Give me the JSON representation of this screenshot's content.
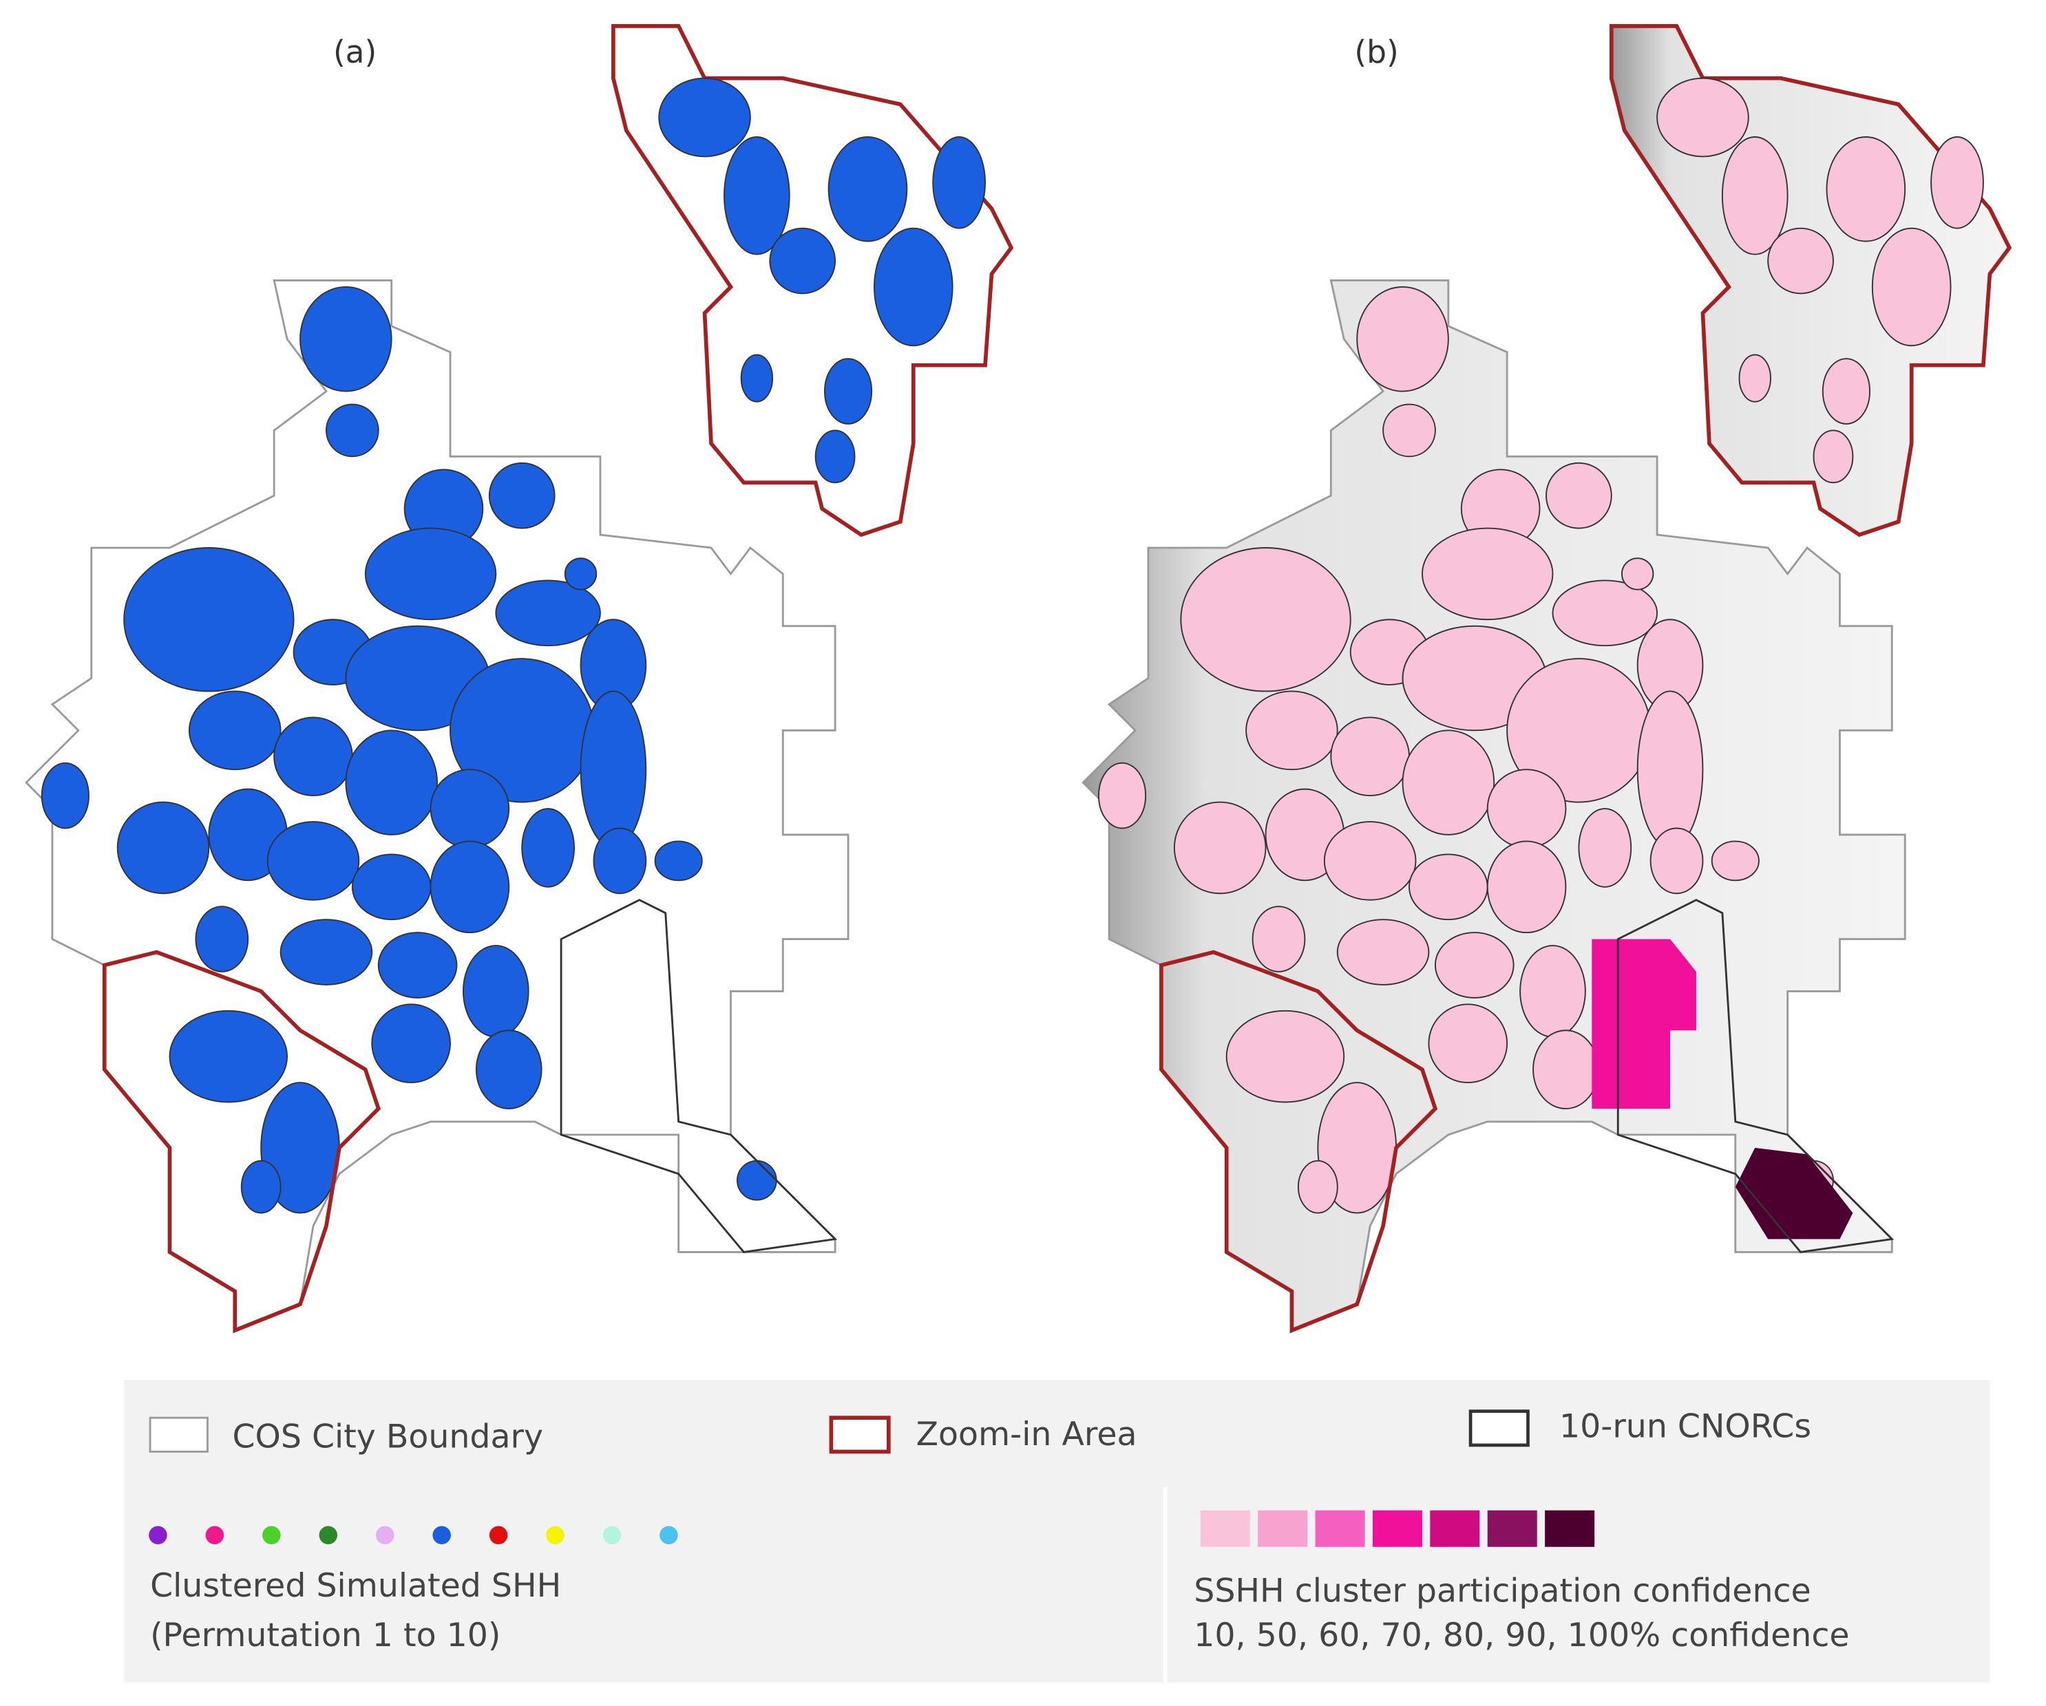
{
  "panels": {
    "a": "(a)",
    "b": "(b)"
  },
  "legend": {
    "boundary": "COS City Boundary",
    "zoom": "Zoom-in Area",
    "cnorc": "10-run CNORCs",
    "permutation": {
      "title": "Clustered Simulated SHH",
      "subtitle": "(Permutation 1 to 10)",
      "colors": [
        "#8a1fd0",
        "#f0198c",
        "#4ad12a",
        "#2a8a2a",
        "#e2b0f0",
        "#1a5fe0",
        "#e01010",
        "#f5f500",
        "#b0f5e0",
        "#4cc2f0"
      ]
    },
    "confidence": {
      "title": "SSHH cluster participation confidence",
      "subtitle": "10, 50, 60, 70, 80, 90, 100% confidence",
      "colors": [
        "#f9c3da",
        "#f7a3cf",
        "#f55fc0",
        "#f0109a",
        "#d00a80",
        "#8a1060",
        "#4d0030"
      ]
    }
  }
}
